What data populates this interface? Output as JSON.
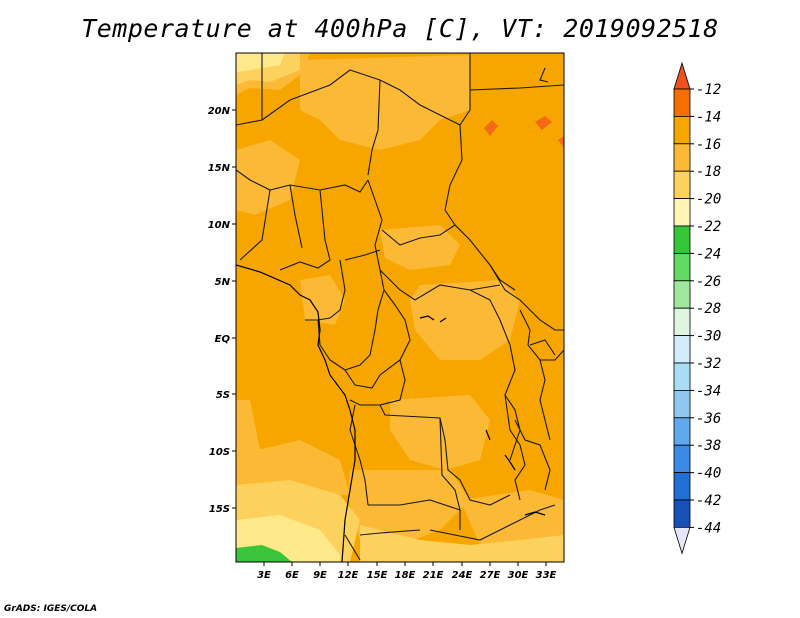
{
  "title": "Temperature at 400hPa [C], VT: 2019092518",
  "credit": "GrADS: IGES/COLA",
  "map": {
    "lat_ticks": [
      "20N",
      "15N",
      "10N",
      "5N",
      "EQ",
      "5S",
      "10S",
      "15S"
    ],
    "lon_ticks": [
      "3E",
      "6E",
      "9E",
      "12E",
      "15E",
      "18E",
      "21E",
      "24E",
      "27E",
      "30E",
      "33E"
    ],
    "colors": {
      "warm_orange": "#f7a600",
      "mid_orange": "#fbb935",
      "light_orange": "#fdd15d",
      "pale_yellow": "#fde98a",
      "green": "#3cc43c",
      "hot": "#f36a14"
    }
  },
  "colorbar": {
    "levels": [
      "-12",
      "-14",
      "-16",
      "-18",
      "-20",
      "-22",
      "-24",
      "-26",
      "-28",
      "-30",
      "-32",
      "-34",
      "-36",
      "-38",
      "-40",
      "-42",
      "-44"
    ],
    "colors": [
      "#f0501e",
      "#f56e00",
      "#f7a600",
      "#fbb935",
      "#fdd15d",
      "#fef6b4",
      "#34c634",
      "#62d962",
      "#9fe79f",
      "#dff5df",
      "#d3ecfa",
      "#aadcf5",
      "#8fc7f1",
      "#5eaaed",
      "#3b8be6",
      "#1f6fd6",
      "#1751b8",
      "#0d2c90",
      "#0b1660",
      "#e6e6fa"
    ]
  }
}
